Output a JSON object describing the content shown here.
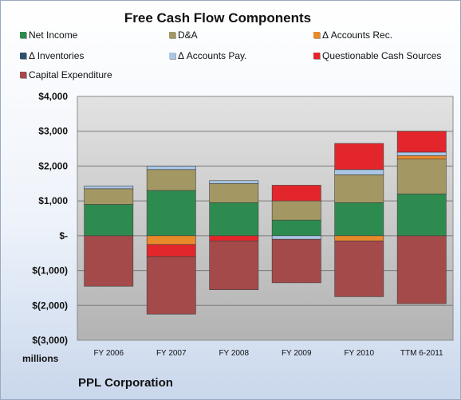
{
  "chart_data": {
    "type": "bar",
    "stacked": true,
    "title": "Free Cash Flow Components",
    "ylabel": "",
    "xlabel": "",
    "unit_label": "millions",
    "ylim": [
      -3000,
      4000
    ],
    "yticks": [
      4000,
      3000,
      2000,
      1000,
      0,
      -1000,
      -2000,
      -3000
    ],
    "ytick_labels": [
      "$4,000",
      "$3,000",
      "$2,000",
      "$1,000",
      "$-",
      "$(1,000)",
      "$(2,000)",
      "$(3,000)"
    ],
    "categories": [
      "FY 2006",
      "FY 2007",
      "FY 2008",
      "FY 2009",
      "FY 2010",
      "TTM 6-2011"
    ],
    "legend_position": "top",
    "grid": true,
    "series": [
      {
        "name": "Net Income",
        "color": "#2e8b4f",
        "values": [
          900,
          1300,
          950,
          450,
          950,
          1200
        ]
      },
      {
        "name": "D&A",
        "color": "#a39863",
        "values": [
          450,
          600,
          550,
          550,
          800,
          1000
        ]
      },
      {
        "name": "Δ Accounts Rec.",
        "color": "#e8892a",
        "values": [
          0,
          -250,
          0,
          0,
          -150,
          100
        ]
      },
      {
        "name": "Δ Inventories",
        "color": "#2f4f6f",
        "values": [
          0,
          0,
          0,
          0,
          0,
          0
        ]
      },
      {
        "name": "Δ Accounts Pay.",
        "color": "#a9c6e6",
        "values": [
          80,
          100,
          80,
          -100,
          150,
          100
        ]
      },
      {
        "name": "Questionable Cash Sources",
        "color": "#e3262b",
        "values": [
          0,
          -350,
          -150,
          450,
          750,
          600
        ]
      },
      {
        "name": "Capital Expenditure",
        "color": "#a44a4a",
        "values": [
          -1450,
          -1650,
          -1400,
          -1250,
          -1600,
          -1950
        ]
      }
    ]
  },
  "footer": {
    "company": "PPL Corporation"
  }
}
